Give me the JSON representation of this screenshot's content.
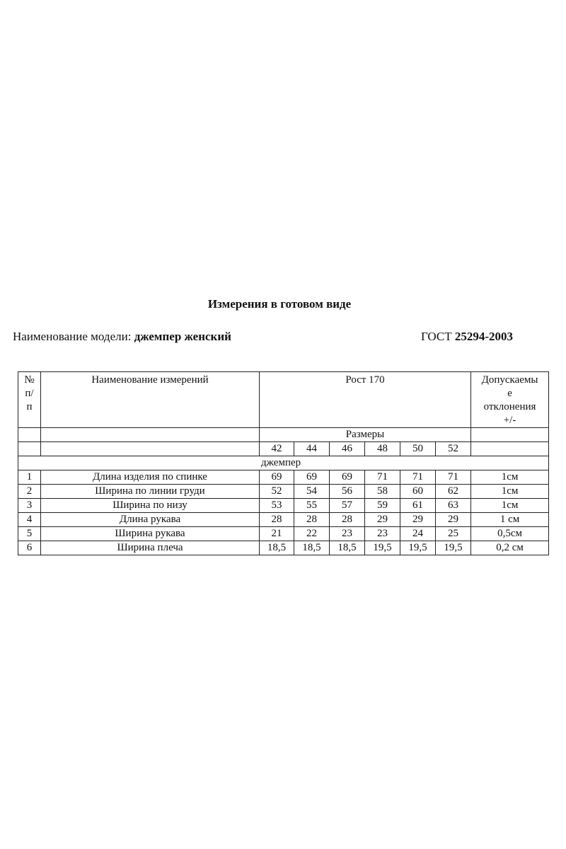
{
  "title": "Измерения в готовом виде",
  "model_label": "Наименование модели:",
  "model_name": "джемпер женский",
  "gost_label": "ГОСТ",
  "gost_number": "25294-2003",
  "table": {
    "col_num": "№ п/ п",
    "col_name": "Наименование измерений",
    "col_height": "Рост 170",
    "col_tolerance": "Допускаемы е отклонения +/-",
    "sizes_label": "Размеры",
    "sizes": [
      "42",
      "44",
      "46",
      "48",
      "50",
      "52"
    ],
    "section": "джемпер",
    "rows": [
      {
        "n": "1",
        "name": "Длина изделия по спинке",
        "values": [
          "69",
          "69",
          "69",
          "71",
          "71",
          "71"
        ],
        "tol": "1см"
      },
      {
        "n": "2",
        "name": "Ширина по линии груди",
        "values": [
          "52",
          "54",
          "56",
          "58",
          "60",
          "62"
        ],
        "tol": "1см"
      },
      {
        "n": "3",
        "name": "Ширина по низу",
        "values": [
          "53",
          "55",
          "57",
          "59",
          "61",
          "63"
        ],
        "tol": "1см"
      },
      {
        "n": "4",
        "name": "Длина рукава",
        "values": [
          "28",
          "28",
          "28",
          "29",
          "29",
          "29"
        ],
        "tol": "1 см"
      },
      {
        "n": "5",
        "name": "Ширина рукава",
        "values": [
          "21",
          "22",
          "23",
          "23",
          "24",
          "25"
        ],
        "tol": "0,5см"
      },
      {
        "n": "6",
        "name": "Ширина плеча",
        "values": [
          "18,5",
          "18,5",
          "18,5",
          "19,5",
          "19,5",
          "19,5"
        ],
        "tol": "0,2 см"
      }
    ]
  }
}
